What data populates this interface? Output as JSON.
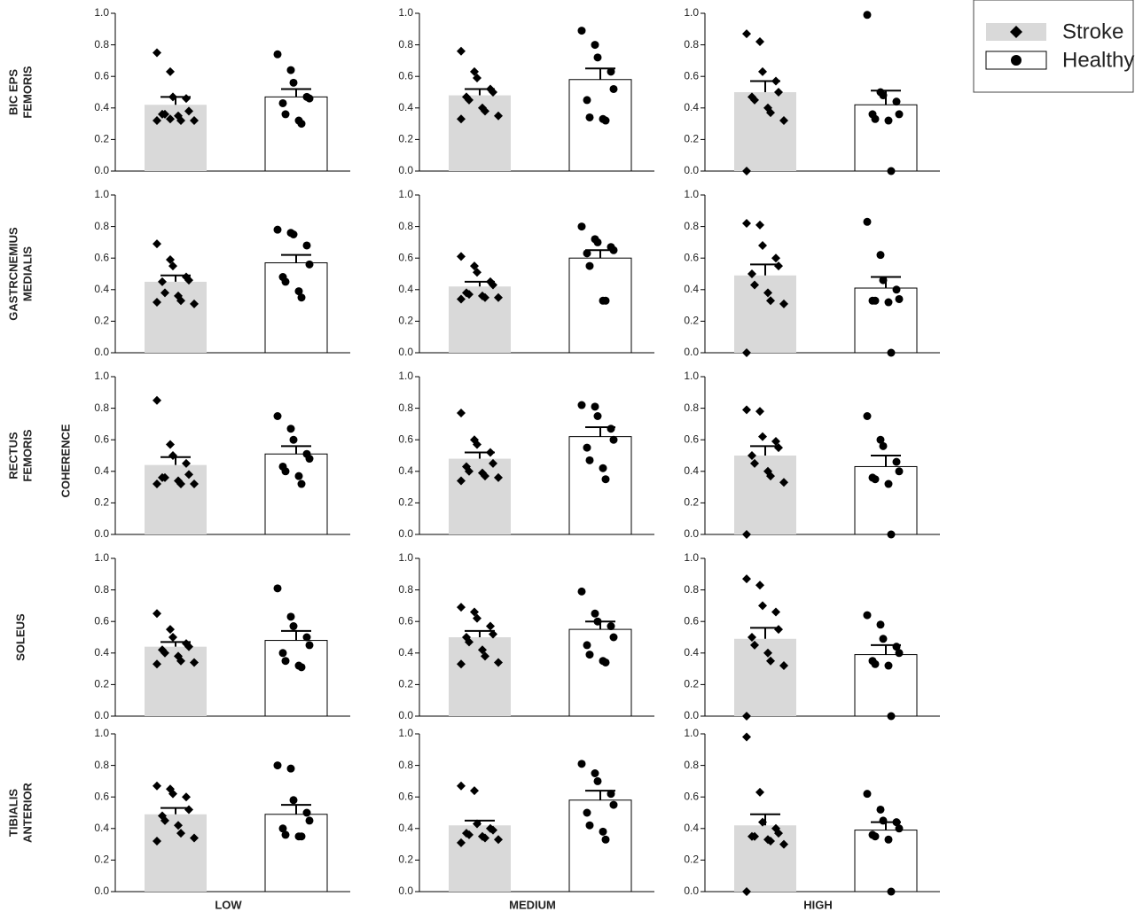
{
  "figure": {
    "y_label": "COHERENCE",
    "row_labels": [
      [
        "BIC EPS",
        "FEMORIS"
      ],
      [
        "GASTRCNEMIUS",
        "MEDIALIS"
      ],
      [
        "RECTUS",
        "FEMORIS"
      ],
      [
        "SOLEUS"
      ],
      [
        "TIBIALIS",
        "ANTERIOR"
      ]
    ],
    "column_labels": [
      "LOW",
      "MEDIUM",
      "HIGH"
    ],
    "legend": [
      {
        "name": "Stroke",
        "color": "#d9d9d9",
        "marker": "diamond"
      },
      {
        "name": "Healthy",
        "color": "#ffffff",
        "marker": "circle"
      }
    ],
    "ylim": [
      0,
      1
    ],
    "yticks": [
      {
        "value": 0,
        "label": "0.0"
      },
      {
        "value": 0.2,
        "label": "0.2"
      },
      {
        "value": 0.4,
        "label": "0.4"
      },
      {
        "value": 0.6,
        "label": "0.6"
      },
      {
        "value": 0.8,
        "label": "0.8"
      },
      {
        "value": 1,
        "label": "1.0"
      }
    ]
  },
  "chart_data": [
    {
      "type": "bar",
      "series": [
        {
          "mean": 0.42,
          "sem": 0.05,
          "points": [
            0.75,
            0.63,
            0.47,
            0.46,
            0.38,
            0.36,
            0.36,
            0.35,
            0.32,
            0.32,
            0.32,
            0.33
          ]
        },
        {
          "mean": 0.47,
          "sem": 0.05,
          "points": [
            0.74,
            0.64,
            0.56,
            0.47,
            0.46,
            0.43,
            0.36,
            0.32,
            0.3
          ]
        }
      ]
    },
    {
      "type": "bar",
      "series": [
        {
          "mean": 0.48,
          "sem": 0.04,
          "points": [
            0.76,
            0.63,
            0.59,
            0.52,
            0.5,
            0.47,
            0.45,
            0.4,
            0.38,
            0.35,
            0.33
          ]
        },
        {
          "mean": 0.58,
          "sem": 0.07,
          "points": [
            0.89,
            0.8,
            0.72,
            0.63,
            0.52,
            0.45,
            0.34,
            0.33,
            0.32
          ]
        }
      ]
    },
    {
      "type": "bar",
      "series": [
        {
          "mean": 0.5,
          "sem": 0.07,
          "points": [
            0.87,
            0.82,
            0.63,
            0.57,
            0.5,
            0.47,
            0.45,
            0.4,
            0.37,
            0.32,
            0
          ]
        },
        {
          "mean": 0.42,
          "sem": 0.09,
          "points": [
            0.99,
            0.5,
            0.48,
            0.44,
            0.36,
            0.36,
            0.33,
            0.32,
            0
          ]
        }
      ]
    },
    {
      "type": "bar",
      "series": [
        {
          "mean": 0.45,
          "sem": 0.04,
          "points": [
            0.69,
            0.59,
            0.55,
            0.48,
            0.46,
            0.45,
            0.38,
            0.36,
            0.33,
            0.31,
            0.32
          ]
        },
        {
          "mean": 0.57,
          "sem": 0.05,
          "points": [
            0.78,
            0.76,
            0.75,
            0.68,
            0.56,
            0.48,
            0.45,
            0.39,
            0.35
          ]
        }
      ]
    },
    {
      "type": "bar",
      "series": [
        {
          "mean": 0.42,
          "sem": 0.03,
          "points": [
            0.61,
            0.55,
            0.51,
            0.45,
            0.43,
            0.38,
            0.37,
            0.36,
            0.35,
            0.35,
            0.34
          ]
        },
        {
          "mean": 0.6,
          "sem": 0.05,
          "points": [
            0.8,
            0.72,
            0.7,
            0.67,
            0.65,
            0.63,
            0.55,
            0.33,
            0.33
          ]
        }
      ]
    },
    {
      "type": "bar",
      "series": [
        {
          "mean": 0.49,
          "sem": 0.07,
          "points": [
            0.82,
            0.81,
            0.68,
            0.6,
            0.55,
            0.5,
            0.43,
            0.38,
            0.33,
            0.31,
            0
          ]
        },
        {
          "mean": 0.41,
          "sem": 0.07,
          "points": [
            0.83,
            0.62,
            0.46,
            0.4,
            0.34,
            0.33,
            0.33,
            0.32,
            0
          ]
        }
      ]
    },
    {
      "type": "bar",
      "series": [
        {
          "mean": 0.44,
          "sem": 0.05,
          "points": [
            0.85,
            0.57,
            0.5,
            0.45,
            0.38,
            0.36,
            0.36,
            0.34,
            0.32,
            0.32,
            0.32
          ]
        },
        {
          "mean": 0.51,
          "sem": 0.05,
          "points": [
            0.75,
            0.67,
            0.6,
            0.51,
            0.48,
            0.43,
            0.4,
            0.37,
            0.32
          ]
        }
      ]
    },
    {
      "type": "bar",
      "series": [
        {
          "mean": 0.48,
          "sem": 0.04,
          "points": [
            0.77,
            0.6,
            0.57,
            0.52,
            0.45,
            0.43,
            0.4,
            0.39,
            0.37,
            0.36,
            0.34
          ]
        },
        {
          "mean": 0.62,
          "sem": 0.06,
          "points": [
            0.82,
            0.81,
            0.75,
            0.67,
            0.6,
            0.55,
            0.47,
            0.42,
            0.35
          ]
        }
      ]
    },
    {
      "type": "bar",
      "series": [
        {
          "mean": 0.5,
          "sem": 0.06,
          "points": [
            0.79,
            0.78,
            0.62,
            0.59,
            0.55,
            0.5,
            0.45,
            0.4,
            0.37,
            0.33,
            0
          ]
        },
        {
          "mean": 0.43,
          "sem": 0.07,
          "points": [
            0.75,
            0.6,
            0.56,
            0.46,
            0.4,
            0.36,
            0.35,
            0.32,
            0
          ]
        }
      ]
    },
    {
      "type": "bar",
      "series": [
        {
          "mean": 0.44,
          "sem": 0.03,
          "points": [
            0.65,
            0.55,
            0.5,
            0.46,
            0.44,
            0.42,
            0.4,
            0.38,
            0.35,
            0.34,
            0.33
          ]
        },
        {
          "mean": 0.48,
          "sem": 0.06,
          "points": [
            0.81,
            0.63,
            0.57,
            0.5,
            0.45,
            0.4,
            0.35,
            0.32,
            0.31
          ]
        }
      ]
    },
    {
      "type": "bar",
      "series": [
        {
          "mean": 0.5,
          "sem": 0.04,
          "points": [
            0.69,
            0.66,
            0.62,
            0.57,
            0.52,
            0.5,
            0.47,
            0.42,
            0.38,
            0.34,
            0.33
          ]
        },
        {
          "mean": 0.55,
          "sem": 0.05,
          "points": [
            0.79,
            0.65,
            0.6,
            0.57,
            0.5,
            0.45,
            0.39,
            0.35,
            0.34
          ]
        }
      ]
    },
    {
      "type": "bar",
      "series": [
        {
          "mean": 0.49,
          "sem": 0.07,
          "points": [
            0.87,
            0.83,
            0.7,
            0.66,
            0.55,
            0.5,
            0.45,
            0.4,
            0.35,
            0.32,
            0
          ]
        },
        {
          "mean": 0.39,
          "sem": 0.06,
          "points": [
            0.64,
            0.58,
            0.49,
            0.44,
            0.4,
            0.35,
            0.33,
            0.32,
            0
          ]
        }
      ]
    },
    {
      "type": "bar",
      "series": [
        {
          "mean": 0.49,
          "sem": 0.04,
          "points": [
            0.67,
            0.65,
            0.62,
            0.6,
            0.52,
            0.48,
            0.45,
            0.42,
            0.37,
            0.34,
            0.32
          ]
        },
        {
          "mean": 0.49,
          "sem": 0.06,
          "points": [
            0.8,
            0.78,
            0.58,
            0.5,
            0.45,
            0.4,
            0.36,
            0.35,
            0.35
          ]
        }
      ]
    },
    {
      "type": "bar",
      "series": [
        {
          "mean": 0.42,
          "sem": 0.03,
          "points": [
            0.67,
            0.64,
            0.43,
            0.4,
            0.39,
            0.37,
            0.36,
            0.35,
            0.34,
            0.33,
            0.31
          ]
        },
        {
          "mean": 0.58,
          "sem": 0.06,
          "points": [
            0.81,
            0.75,
            0.7,
            0.62,
            0.55,
            0.5,
            0.42,
            0.38,
            0.33
          ]
        }
      ]
    },
    {
      "type": "bar",
      "series": [
        {
          "mean": 0.42,
          "sem": 0.07,
          "points": [
            0.98,
            0.63,
            0.44,
            0.4,
            0.37,
            0.35,
            0.35,
            0.33,
            0.32,
            0.3,
            0
          ]
        },
        {
          "mean": 0.39,
          "sem": 0.05,
          "points": [
            0.62,
            0.52,
            0.45,
            0.44,
            0.4,
            0.36,
            0.35,
            0.33,
            0
          ]
        }
      ]
    }
  ]
}
